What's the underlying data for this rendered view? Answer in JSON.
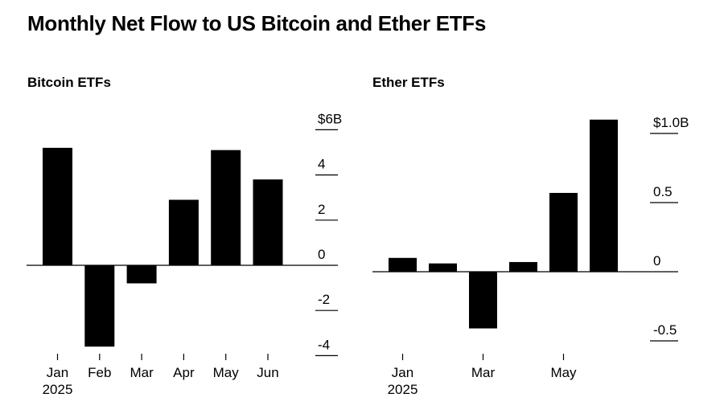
{
  "title": "Monthly Net Flow to US Bitcoin and Ether ETFs",
  "chart_data": [
    {
      "type": "bar",
      "title": "Bitcoin ETFs",
      "categories": [
        "Jan",
        "Feb",
        "Mar",
        "Apr",
        "May",
        "Jun"
      ],
      "x_tick_labels": [
        [
          "Jan",
          "2025"
        ],
        [
          "Feb"
        ],
        [
          "Mar"
        ],
        [
          "Apr"
        ],
        [
          "May"
        ],
        [
          "Jun"
        ]
      ],
      "values": [
        5.2,
        -3.6,
        -0.8,
        2.9,
        5.1,
        3.8
      ],
      "ylim": [
        -4.3,
        6.5
      ],
      "y_ticks": [
        {
          "value": 6,
          "label": "$6B"
        },
        {
          "value": 4,
          "label": "4"
        },
        {
          "value": 2,
          "label": "2"
        },
        {
          "value": 0,
          "label": "0"
        },
        {
          "value": -2,
          "label": "-2"
        },
        {
          "value": -4,
          "label": "-4"
        }
      ],
      "axis_side": "right",
      "grid": false,
      "bar_color": "#000000"
    },
    {
      "type": "bar",
      "title": "Ether ETFs",
      "categories": [
        "Jan",
        "Feb",
        "Mar",
        "Apr",
        "May",
        "Jun"
      ],
      "x_tick_labels": [
        [
          "Jan",
          "2025"
        ],
        [],
        [
          "Mar"
        ],
        [],
        [
          "May"
        ],
        []
      ],
      "values": [
        0.1,
        0.06,
        -0.41,
        0.07,
        0.57,
        1.1
      ],
      "ylim": [
        -0.55,
        1.15
      ],
      "y_ticks": [
        {
          "value": 1.0,
          "label": "$1.0B"
        },
        {
          "value": 0.5,
          "label": "0.5"
        },
        {
          "value": 0,
          "label": "0"
        },
        {
          "value": -0.5,
          "label": "-0.5"
        }
      ],
      "axis_side": "right",
      "grid": false,
      "bar_color": "#000000"
    }
  ]
}
